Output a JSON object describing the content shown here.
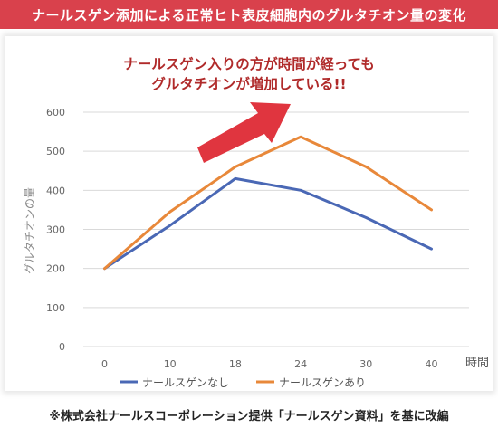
{
  "banner_title": "ナールスゲン添加による正常ヒト表皮細胞内のグルタチオン量の変化",
  "callout": {
    "line1": "ナールスゲン入りの方が時間が経っても",
    "line2": "グルタチオンが増加している!!"
  },
  "footnote": "※株式会社ナールスコーポレーション提供「ナールスゲン資料」を基に改編",
  "colors": {
    "banner": "#d9414c",
    "arrow": "#e0353f",
    "series_without": "#4a68b5",
    "series_with": "#e8883a"
  },
  "chart_data": {
    "type": "line",
    "x": [
      0,
      10,
      18,
      24,
      30,
      40
    ],
    "xticks": [
      "0",
      "10",
      "18",
      "24",
      "30",
      "40"
    ],
    "xlabel": "時間",
    "ylabel": "グルタチオンの量",
    "ylim": [
      0,
      600
    ],
    "yticks": [
      "0",
      "100",
      "200",
      "300",
      "400",
      "500",
      "600"
    ],
    "grid": true,
    "legend_position": "bottom",
    "series": [
      {
        "name": "ナールスゲンなし",
        "values": [
          200,
          310,
          430,
          400,
          330,
          250
        ]
      },
      {
        "name": "ナールスゲンあり",
        "values": [
          200,
          345,
          460,
          537,
          460,
          350
        ]
      }
    ]
  }
}
